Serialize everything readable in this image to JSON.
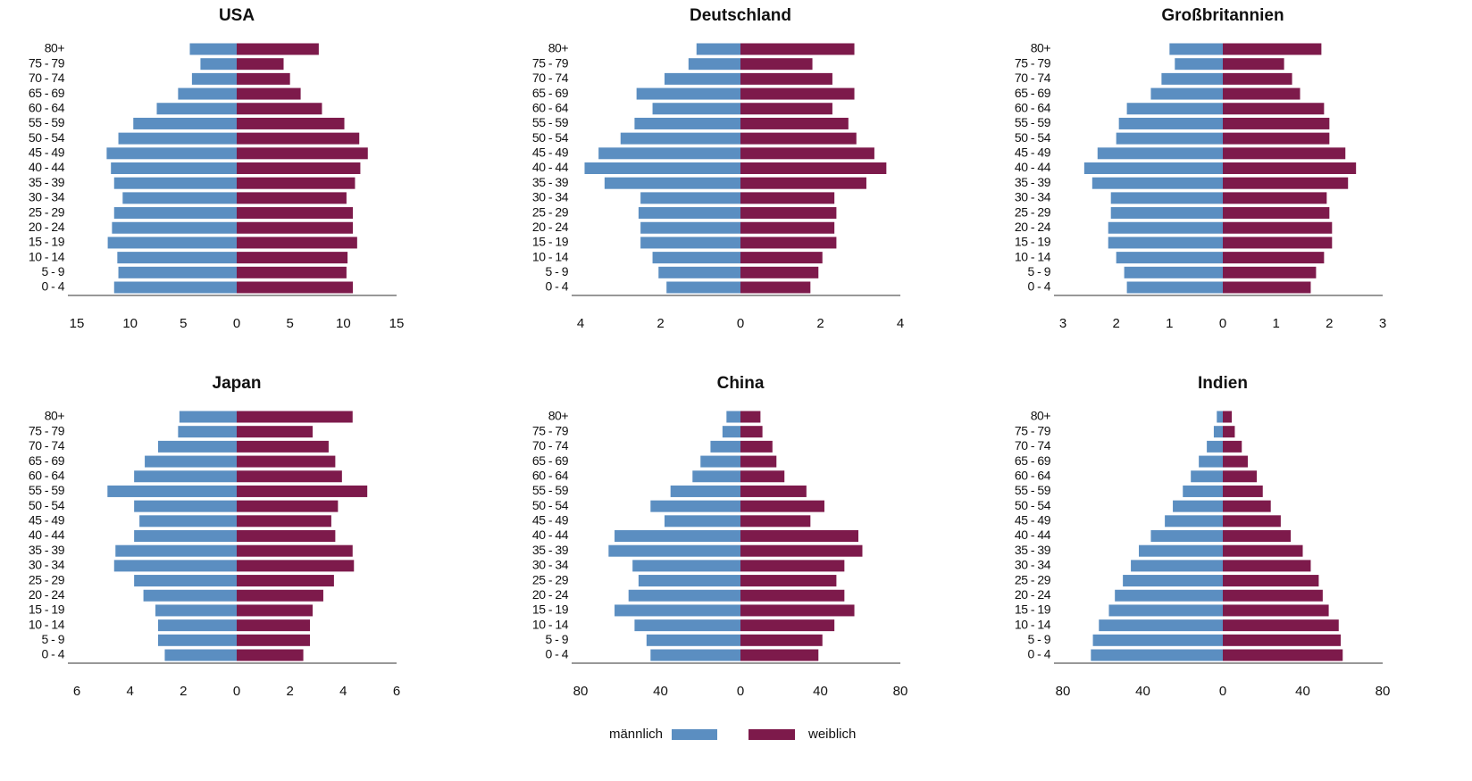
{
  "legend": [
    {
      "name": "männlich",
      "color": "#5b8ec1"
    },
    {
      "name": "weiblich",
      "color": "#7d1a4b"
    }
  ],
  "chart_data": [
    {
      "type": "pyramid",
      "title": "USA",
      "categories": [
        "0 - 4",
        "5 - 9",
        "10 - 14",
        "15 - 19",
        "20 - 24",
        "25 - 29",
        "30 - 34",
        "35 - 39",
        "40 - 44",
        "45 - 49",
        "50 - 54",
        "55 - 59",
        "60 - 64",
        "65 - 69",
        "70 - 74",
        "75 - 79",
        "80+"
      ],
      "series": [
        {
          "values": [
            -11.5,
            -11.1,
            -11.2,
            -12.1,
            -11.7,
            -11.5,
            -10.7,
            -11.5,
            -11.8,
            -12.2,
            -11.1,
            -9.7,
            -7.5,
            -5.5,
            -4.2,
            -3.4,
            -4.4
          ]
        },
        {
          "values": [
            10.9,
            10.3,
            10.4,
            11.3,
            10.9,
            10.9,
            10.3,
            11.1,
            11.6,
            12.3,
            11.5,
            10.1,
            8.0,
            6.0,
            5.0,
            4.4,
            7.7
          ]
        }
      ],
      "xlim": [
        -15,
        15
      ],
      "xticks": [
        {
          "value": -15,
          "label": "15"
        },
        {
          "value": -10,
          "label": "10"
        },
        {
          "value": -5,
          "label": "5"
        },
        0,
        5,
        10,
        15
      ]
    },
    {
      "type": "pyramid",
      "title": "Deutschland",
      "categories": [
        "0 - 4",
        "5 - 9",
        "10 - 14",
        "15 - 19",
        "20 - 24",
        "25 - 29",
        "30 - 34",
        "35 - 39",
        "40 - 44",
        "45 - 49",
        "50 - 54",
        "55 - 59",
        "60 - 64",
        "65 - 69",
        "70 - 74",
        "75 - 79",
        "80+"
      ],
      "series": [
        {
          "values": [
            -1.85,
            -2.05,
            -2.2,
            -2.5,
            -2.5,
            -2.55,
            -2.5,
            -3.4,
            -3.9,
            -3.55,
            -3.0,
            -2.65,
            -2.2,
            -2.6,
            -1.9,
            -1.3,
            -1.1
          ]
        },
        {
          "values": [
            1.75,
            1.95,
            2.05,
            2.4,
            2.35,
            2.4,
            2.35,
            3.15,
            3.65,
            3.35,
            2.9,
            2.7,
            2.3,
            2.85,
            2.3,
            1.8,
            2.85
          ]
        }
      ],
      "xlim": [
        -4,
        4
      ],
      "xticks": [
        {
          "value": -4,
          "label": "4"
        },
        {
          "value": -2,
          "label": "2"
        },
        0,
        2,
        4
      ]
    },
    {
      "type": "pyramid",
      "title": "Großbritannien",
      "categories": [
        "0 - 4",
        "5 - 9",
        "10 - 14",
        "15 - 19",
        "20 - 24",
        "25 - 29",
        "30 - 34",
        "35 - 39",
        "40 - 44",
        "45 - 49",
        "50 - 54",
        "55 - 59",
        "60 - 64",
        "65 - 69",
        "70 - 74",
        "75 - 79",
        "80+"
      ],
      "series": [
        {
          "values": [
            -1.8,
            -1.85,
            -2.0,
            -2.15,
            -2.15,
            -2.1,
            -2.1,
            -2.45,
            -2.6,
            -2.35,
            -2.0,
            -1.95,
            -1.8,
            -1.35,
            -1.15,
            -0.9,
            -1.0
          ]
        },
        {
          "values": [
            1.65,
            1.75,
            1.9,
            2.05,
            2.05,
            2.0,
            1.95,
            2.35,
            2.5,
            2.3,
            2.0,
            2.0,
            1.9,
            1.45,
            1.3,
            1.15,
            1.85
          ]
        }
      ],
      "xlim": [
        -3,
        3
      ],
      "xticks": [
        {
          "value": -3,
          "label": "3"
        },
        {
          "value": -2,
          "label": "2"
        },
        {
          "value": -1,
          "label": "1"
        },
        0,
        1,
        2,
        3
      ]
    },
    {
      "type": "pyramid",
      "title": "Japan",
      "categories": [
        "0 - 4",
        "5 - 9",
        "10 - 14",
        "15 - 19",
        "20 - 24",
        "25 - 29",
        "30 - 34",
        "35 - 39",
        "40 - 44",
        "45 - 49",
        "50 - 54",
        "55 - 59",
        "60 - 64",
        "65 - 69",
        "70 - 74",
        "75 - 79",
        "80+"
      ],
      "series": [
        {
          "values": [
            -2.7,
            -2.95,
            -2.95,
            -3.05,
            -3.5,
            -3.85,
            -4.6,
            -4.55,
            -3.85,
            -3.65,
            -3.85,
            -4.85,
            -3.85,
            -3.45,
            -2.95,
            -2.2,
            -2.15
          ]
        },
        {
          "values": [
            2.5,
            2.75,
            2.75,
            2.85,
            3.25,
            3.65,
            4.4,
            4.35,
            3.7,
            3.55,
            3.8,
            4.9,
            3.95,
            3.7,
            3.45,
            2.85,
            4.35
          ]
        }
      ],
      "xlim": [
        -6,
        6
      ],
      "xticks": [
        {
          "value": -6,
          "label": "6"
        },
        {
          "value": -4,
          "label": "4"
        },
        {
          "value": -2,
          "label": "2"
        },
        0,
        2,
        4,
        6
      ]
    },
    {
      "type": "pyramid",
      "title": "China",
      "categories": [
        "0 - 4",
        "5 - 9",
        "10 - 14",
        "15 - 19",
        "20 - 24",
        "25 - 29",
        "30 - 34",
        "35 - 39",
        "40 - 44",
        "45 - 49",
        "50 - 54",
        "55 - 59",
        "60 - 64",
        "65 - 69",
        "70 - 74",
        "75 - 79",
        "80+"
      ],
      "series": [
        {
          "values": [
            -45,
            -47,
            -53,
            -63,
            -56,
            -51,
            -54,
            -66,
            -63,
            -38,
            -45,
            -35,
            -24,
            -20,
            -15,
            -9,
            -7
          ]
        },
        {
          "values": [
            39,
            41,
            47,
            57,
            52,
            48,
            52,
            61,
            59,
            35,
            42,
            33,
            22,
            18,
            16,
            11,
            10
          ]
        }
      ],
      "xlim": [
        -80,
        80
      ],
      "xticks": [
        {
          "value": -80,
          "label": "80"
        },
        {
          "value": -40,
          "label": "40"
        },
        0,
        40,
        80
      ]
    },
    {
      "type": "pyramid",
      "title": "Indien",
      "categories": [
        "0 - 4",
        "5 - 9",
        "10 - 14",
        "15 - 19",
        "20 - 24",
        "25 - 29",
        "30 - 34",
        "35 - 39",
        "40 - 44",
        "45 - 49",
        "50 - 54",
        "55 - 59",
        "60 - 64",
        "65 - 69",
        "70 - 74",
        "75 - 79",
        "80+"
      ],
      "series": [
        {
          "values": [
            -66,
            -65,
            -62,
            -57,
            -54,
            -50,
            -46,
            -42,
            -36,
            -29,
            -25,
            -20,
            -16,
            -12,
            -8,
            -4.5,
            -3
          ]
        },
        {
          "values": [
            60,
            59,
            58,
            53,
            50,
            48,
            44,
            40,
            34,
            29,
            24,
            20,
            17,
            12.5,
            9.5,
            6,
            4.5
          ]
        }
      ],
      "xlim": [
        -80,
        80
      ],
      "xticks": [
        {
          "value": -80,
          "label": "80"
        },
        {
          "value": -40,
          "label": "40"
        },
        0,
        40,
        80
      ]
    }
  ]
}
